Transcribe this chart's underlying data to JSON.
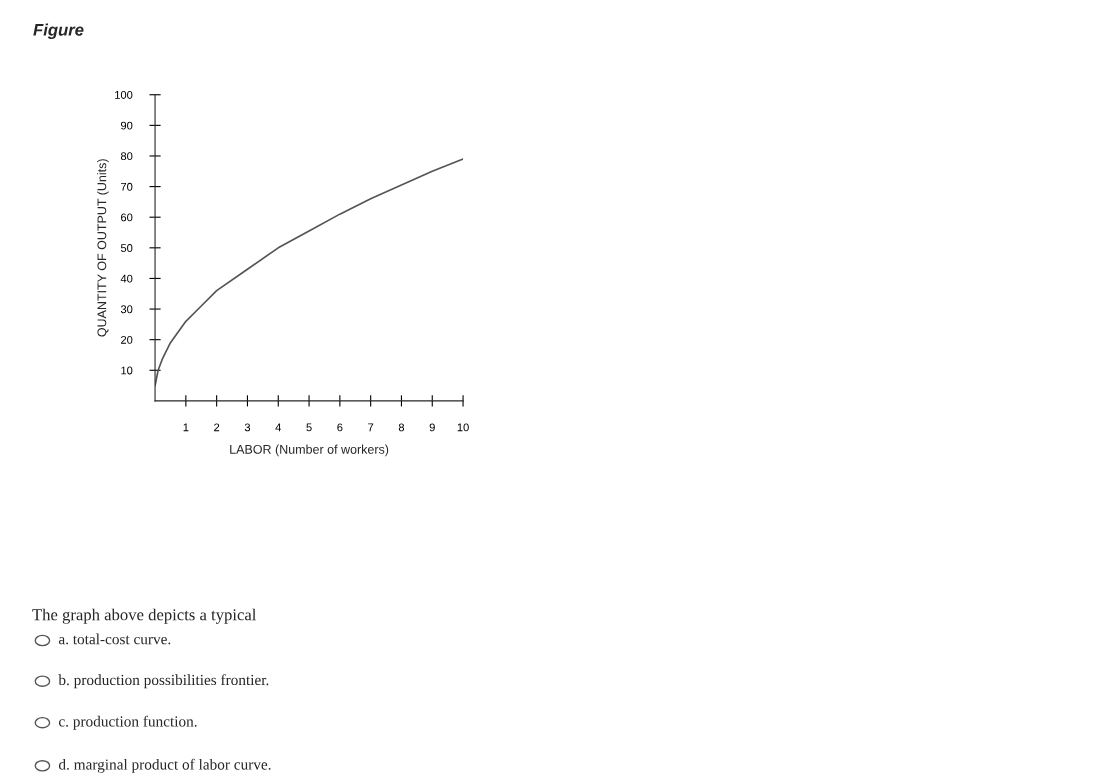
{
  "chart_data": {
    "type": "line",
    "title": "Figure",
    "xlabel": "LABOR (Number of workers)",
    "ylabel": "QUANTITY OF OUTPUT (Units)",
    "x": [
      0,
      0.1,
      0.25,
      0.5,
      1,
      1.5,
      2,
      3,
      4,
      5,
      6,
      7,
      8,
      9,
      10
    ],
    "series": [
      {
        "color": "#555555",
        "values": [
          5,
          10,
          14,
          19,
          26,
          31,
          36,
          43,
          50,
          55.5,
          61,
          66,
          70.5,
          75,
          79
        ]
      }
    ],
    "xlim": [
      0,
      10
    ],
    "xticks": [
      1,
      2,
      3,
      4,
      5,
      6,
      7,
      8,
      9,
      10
    ],
    "ylim": [
      0,
      100
    ],
    "yticks": [
      10,
      20,
      30,
      40,
      50,
      60,
      70,
      80,
      90,
      100
    ],
    "grid": false,
    "marker": "none",
    "line_style": "solid",
    "annotations": [
      "The graph above depicts a typical",
      "a. total-cost curve.",
      "b. production possibilities frontier.",
      "c. production function.",
      "d. marginal product of labor curve."
    ]
  }
}
